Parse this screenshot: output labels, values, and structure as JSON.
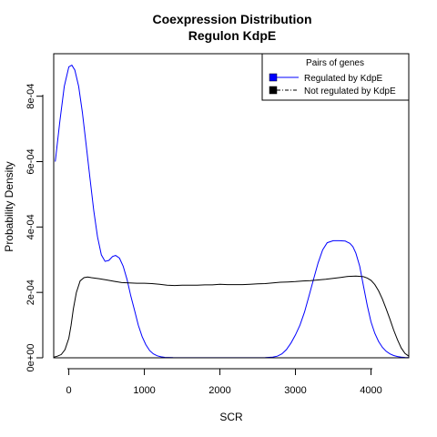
{
  "chart_data": {
    "type": "line",
    "title": "Coexpression Distribution",
    "subtitle": "Regulon KdpE",
    "xlabel": "SCR",
    "ylabel": "Probability Density",
    "xlim": [
      -200,
      4500
    ],
    "ylim": [
      0,
      0.00093
    ],
    "x_ticks": [
      0,
      1000,
      2000,
      3000,
      4000
    ],
    "x_tick_labels": [
      "0",
      "1000",
      "2000",
      "3000",
      "4000"
    ],
    "y_ticks": [
      0,
      0.0002,
      0.0004,
      0.0006,
      0.0008
    ],
    "y_tick_labels": [
      "0e+00",
      "2e-04",
      "4e-04",
      "6e-04",
      "8e-04"
    ],
    "grid": false,
    "legend": {
      "title": "Pairs of genes",
      "placement": "top-right",
      "entries": [
        "Regulated by  KdpE",
        "Not regulated by  KdpE"
      ]
    },
    "series": [
      {
        "color": "#0000ff",
        "x": [
          -180,
          -120,
          -60,
          0,
          40,
          80,
          130,
          180,
          230,
          280,
          330,
          380,
          430,
          480,
          530,
          580,
          620,
          670,
          720,
          770,
          820,
          870,
          920,
          970,
          1020,
          1070,
          1120,
          1170,
          1220,
          1270,
          1320,
          1380,
          1450,
          1600,
          2000,
          2400,
          2600,
          2700,
          2760,
          2820,
          2880,
          2940,
          3000,
          3060,
          3120,
          3180,
          3240,
          3300,
          3360,
          3420,
          3500,
          3580,
          3660,
          3720,
          3760,
          3800,
          3850,
          3900,
          3950,
          4000,
          4050,
          4100,
          4150,
          4200,
          4250,
          4300,
          4350,
          4400,
          4450,
          4500
        ],
        "y": [
          0.0006,
          0.00072,
          0.00083,
          0.00089,
          0.000895,
          0.00088,
          0.00083,
          0.00075,
          0.00065,
          0.00055,
          0.00045,
          0.00037,
          0.000315,
          0.000295,
          0.000298,
          0.00031,
          0.000313,
          0.000305,
          0.00028,
          0.00024,
          0.00019,
          0.000145,
          0.0001,
          6.5e-05,
          4e-05,
          2.2e-05,
          1.2e-05,
          6e-06,
          3e-06,
          1.5e-06,
          1e-06,
          5e-07,
          3e-07,
          2e-07,
          2e-07,
          2e-07,
          5e-07,
          2e-06,
          5e-06,
          1.2e-05,
          2.5e-05,
          4.5e-05,
          7e-05,
          0.0001,
          0.00014,
          0.00019,
          0.00024,
          0.00029,
          0.00033,
          0.000352,
          0.000358,
          0.000358,
          0.000357,
          0.00035,
          0.00034,
          0.00032,
          0.00028,
          0.00022,
          0.00016,
          0.00011,
          7.5e-05,
          5e-05,
          3.2e-05,
          2e-05,
          1.2e-05,
          7e-06,
          4e-06,
          2e-06,
          1e-06,
          5e-07
        ]
      },
      {
        "color": "#000000",
        "x": [
          -200,
          -150,
          -100,
          -50,
          0,
          30,
          60,
          100,
          150,
          200,
          250,
          300,
          400,
          500,
          600,
          700,
          800,
          900,
          1000,
          1100,
          1200,
          1300,
          1400,
          1500,
          1600,
          1700,
          1800,
          1900,
          2000,
          2100,
          2200,
          2300,
          2400,
          2500,
          2600,
          2700,
          2800,
          2900,
          3000,
          3100,
          3200,
          3300,
          3400,
          3500,
          3600,
          3700,
          3800,
          3900,
          3950,
          4000,
          4050,
          4100,
          4150,
          4200,
          4250,
          4300,
          4350,
          4400,
          4450,
          4500
        ],
        "y": [
          2e-06,
          5e-06,
          1e-05,
          2.5e-05,
          6e-05,
          0.0001,
          0.00015,
          0.0002,
          0.000235,
          0.000245,
          0.000247,
          0.000245,
          0.000242,
          0.000238,
          0.000234,
          0.00023,
          0.000229,
          0.000228,
          0.000228,
          0.000227,
          0.000225,
          0.000222,
          0.000221,
          0.000222,
          0.000222,
          0.000222,
          0.000223,
          0.000223,
          0.000225,
          0.000224,
          0.000224,
          0.000224,
          0.000225,
          0.000226,
          0.000227,
          0.000229,
          0.000231,
          0.000232,
          0.000233,
          0.000235,
          0.000236,
          0.000238,
          0.00024,
          0.000243,
          0.000246,
          0.000249,
          0.00025,
          0.000248,
          0.000244,
          0.000237,
          0.000224,
          0.000205,
          0.00018,
          0.00015,
          0.000118,
          8.5e-05,
          5.5e-05,
          3e-05,
          1.3e-05,
          5e-06
        ]
      }
    ]
  }
}
